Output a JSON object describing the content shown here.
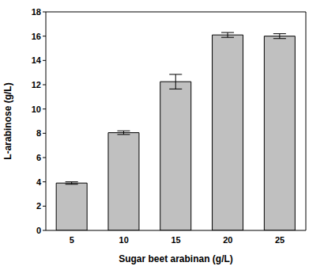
{
  "chart_data": {
    "type": "bar",
    "x_label": "Sugar beet arabinan (g/L)",
    "y_label": "L-arabinose (g/L)",
    "categories": [
      5,
      10,
      15,
      20,
      25
    ],
    "values": [
      3.9,
      8.05,
      12.25,
      16.1,
      16.0
    ],
    "errors": [
      0.1,
      0.15,
      0.6,
      0.2,
      0.2
    ],
    "color": "#c0c0c0",
    "ylim": [
      0,
      18
    ],
    "yticks": [
      0,
      2,
      4,
      6,
      8,
      10,
      12,
      14,
      16,
      18
    ],
    "grid": false
  }
}
